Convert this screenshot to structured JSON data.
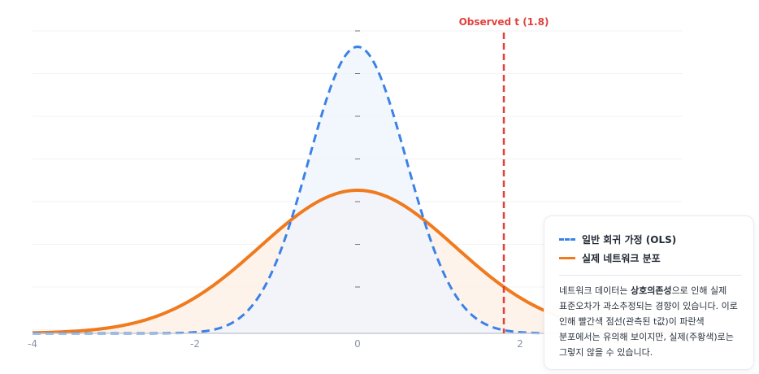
{
  "chart_data": {
    "type": "line",
    "xlim": [
      -4,
      4
    ],
    "x_ticks": [
      "-4",
      "-2",
      "0",
      "2"
    ],
    "grid": true,
    "legend_position": "bottom-right",
    "series": [
      {
        "name": "일반 회귀 가정 (OLS)",
        "color": "#3b82e6",
        "fill": "#eef4fd",
        "style": "dashed",
        "distribution": "normal",
        "mean": 0,
        "sd": 0.6,
        "peak": 0.665,
        "x": [
          -4,
          -3,
          -2,
          -1.5,
          -1,
          -0.5,
          0,
          0.5,
          1,
          1.5,
          2,
          3,
          4
        ],
        "y": [
          0.0,
          0.0,
          0.0028,
          0.029,
          0.166,
          0.469,
          0.665,
          0.469,
          0.166,
          0.029,
          0.0028,
          0.0,
          0.0
        ]
      },
      {
        "name": "실제 네트워크 분포",
        "color": "#f07a1e",
        "fill": "#fdf1e8",
        "style": "solid",
        "distribution": "normal",
        "mean": 0,
        "sd": 1.2,
        "peak": 0.332,
        "x": [
          -4,
          -3,
          -2,
          -1,
          0,
          1,
          2,
          3,
          4
        ],
        "y": [
          0.0013,
          0.0146,
          0.0826,
          0.2346,
          0.332,
          0.2346,
          0.0826,
          0.0146,
          0.0013
        ]
      }
    ],
    "annotations": [
      {
        "label": "Observed t (1.8)",
        "x": 1.8,
        "color": "#e0433e",
        "style": "dashed"
      }
    ]
  },
  "legend": {
    "ols_label": "일반 회귀 가정 (OLS)",
    "network_label": "실제 네트워크 분포",
    "note_part1": "네트워크 데이터는 ",
    "note_bold": "상호의존성",
    "note_part2": "으로 인해 실제 표준오차가 과소추정되는 경향이 있습니다. 이로 인해 빨간색 점선(관측된 t값)이 파란색 분포에서는 유의해 보이지만, 실제(주황색)로는 그렇지 않을 수 있습니다."
  }
}
